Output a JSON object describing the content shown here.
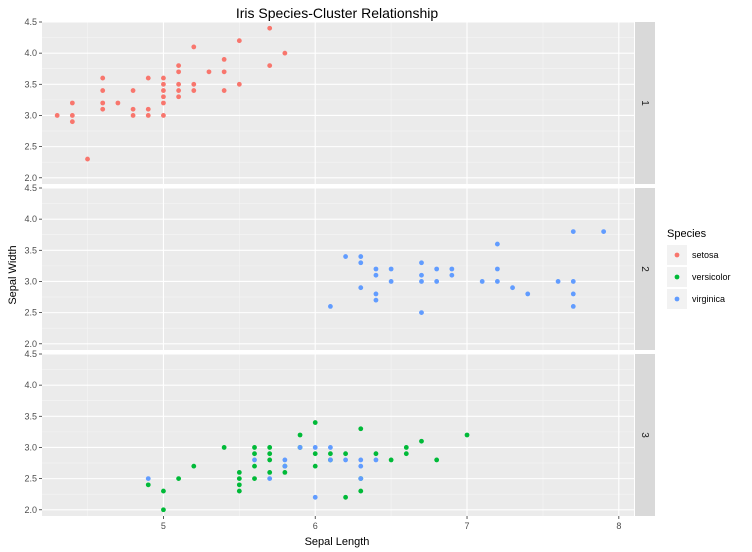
{
  "chart_data": {
    "type": "scatter",
    "title": "Iris Species-Cluster Relationship",
    "xlabel": "Sepal Length",
    "ylabel": "Sepal Width",
    "xlim": [
      4.2,
      8.1
    ],
    "ylim": [
      1.9,
      4.5
    ],
    "x_ticks": [
      5,
      6,
      7,
      8
    ],
    "y_ticks": [
      2.0,
      2.5,
      3.0,
      3.5,
      4.0,
      4.5
    ],
    "y_tick_labels": [
      "2.0",
      "2.5",
      "3.0",
      "3.5",
      "4.0",
      "4.5"
    ],
    "grid": true,
    "facet_by": "cluster",
    "facets": [
      "1",
      "2",
      "3"
    ],
    "legend": {
      "title": "Species",
      "position": "right",
      "entries": [
        "setosa",
        "versicolor",
        "virginica"
      ]
    },
    "colors": {
      "setosa": "#F8766D",
      "versicolor": "#00BA38",
      "virginica": "#619CFF",
      "panel_bg": "#EBEBEB",
      "strip_bg": "#D9D9D9"
    },
    "series": [
      {
        "name": "setosa",
        "points": [
          {
            "facet": "1",
            "x": 4.3,
            "y": 3.0
          },
          {
            "facet": "1",
            "x": 4.4,
            "y": 3.2
          },
          {
            "facet": "1",
            "x": 4.4,
            "y": 3.0
          },
          {
            "facet": "1",
            "x": 4.4,
            "y": 2.9
          },
          {
            "facet": "1",
            "x": 4.5,
            "y": 2.3
          },
          {
            "facet": "1",
            "x": 4.6,
            "y": 3.6
          },
          {
            "facet": "1",
            "x": 4.6,
            "y": 3.4
          },
          {
            "facet": "1",
            "x": 4.6,
            "y": 3.2
          },
          {
            "facet": "1",
            "x": 4.6,
            "y": 3.1
          },
          {
            "facet": "1",
            "x": 4.7,
            "y": 3.2
          },
          {
            "facet": "1",
            "x": 4.8,
            "y": 3.4
          },
          {
            "facet": "1",
            "x": 4.8,
            "y": 3.1
          },
          {
            "facet": "1",
            "x": 4.8,
            "y": 3.0
          },
          {
            "facet": "1",
            "x": 4.9,
            "y": 3.6
          },
          {
            "facet": "1",
            "x": 4.9,
            "y": 3.1
          },
          {
            "facet": "1",
            "x": 4.9,
            "y": 3.0
          },
          {
            "facet": "1",
            "x": 5.0,
            "y": 3.6
          },
          {
            "facet": "1",
            "x": 5.0,
            "y": 3.5
          },
          {
            "facet": "1",
            "x": 5.0,
            "y": 3.4
          },
          {
            "facet": "1",
            "x": 5.0,
            "y": 3.3
          },
          {
            "facet": "1",
            "x": 5.0,
            "y": 3.2
          },
          {
            "facet": "1",
            "x": 5.0,
            "y": 3.0
          },
          {
            "facet": "1",
            "x": 5.1,
            "y": 3.8
          },
          {
            "facet": "1",
            "x": 5.1,
            "y": 3.7
          },
          {
            "facet": "1",
            "x": 5.1,
            "y": 3.5
          },
          {
            "facet": "1",
            "x": 5.1,
            "y": 3.4
          },
          {
            "facet": "1",
            "x": 5.1,
            "y": 3.3
          },
          {
            "facet": "1",
            "x": 5.2,
            "y": 4.1
          },
          {
            "facet": "1",
            "x": 5.2,
            "y": 3.5
          },
          {
            "facet": "1",
            "x": 5.2,
            "y": 3.4
          },
          {
            "facet": "1",
            "x": 5.3,
            "y": 3.7
          },
          {
            "facet": "1",
            "x": 5.4,
            "y": 3.9
          },
          {
            "facet": "1",
            "x": 5.4,
            "y": 3.7
          },
          {
            "facet": "1",
            "x": 5.4,
            "y": 3.4
          },
          {
            "facet": "1",
            "x": 5.5,
            "y": 4.2
          },
          {
            "facet": "1",
            "x": 5.5,
            "y": 3.5
          },
          {
            "facet": "1",
            "x": 5.7,
            "y": 4.4
          },
          {
            "facet": "1",
            "x": 5.7,
            "y": 3.8
          },
          {
            "facet": "1",
            "x": 5.8,
            "y": 4.0
          }
        ]
      },
      {
        "name": "versicolor",
        "points": [
          {
            "facet": "3",
            "x": 4.9,
            "y": 2.4
          },
          {
            "facet": "3",
            "x": 5.0,
            "y": 2.3
          },
          {
            "facet": "3",
            "x": 5.0,
            "y": 2.0
          },
          {
            "facet": "3",
            "x": 5.1,
            "y": 2.5
          },
          {
            "facet": "3",
            "x": 5.2,
            "y": 2.7
          },
          {
            "facet": "3",
            "x": 5.4,
            "y": 3.0
          },
          {
            "facet": "3",
            "x": 5.5,
            "y": 2.6
          },
          {
            "facet": "3",
            "x": 5.5,
            "y": 2.5
          },
          {
            "facet": "3",
            "x": 5.5,
            "y": 2.4
          },
          {
            "facet": "3",
            "x": 5.5,
            "y": 2.3
          },
          {
            "facet": "3",
            "x": 5.6,
            "y": 3.0
          },
          {
            "facet": "3",
            "x": 5.6,
            "y": 2.9
          },
          {
            "facet": "3",
            "x": 5.6,
            "y": 2.7
          },
          {
            "facet": "3",
            "x": 5.6,
            "y": 2.5
          },
          {
            "facet": "3",
            "x": 5.7,
            "y": 3.0
          },
          {
            "facet": "3",
            "x": 5.7,
            "y": 2.9
          },
          {
            "facet": "3",
            "x": 5.7,
            "y": 2.8
          },
          {
            "facet": "3",
            "x": 5.7,
            "y": 2.6
          },
          {
            "facet": "3",
            "x": 5.8,
            "y": 2.7
          },
          {
            "facet": "3",
            "x": 5.8,
            "y": 2.6
          },
          {
            "facet": "3",
            "x": 5.9,
            "y": 3.2
          },
          {
            "facet": "3",
            "x": 5.9,
            "y": 3.0
          },
          {
            "facet": "3",
            "x": 6.0,
            "y": 3.4
          },
          {
            "facet": "3",
            "x": 6.0,
            "y": 2.9
          },
          {
            "facet": "3",
            "x": 6.0,
            "y": 2.7
          },
          {
            "facet": "3",
            "x": 6.1,
            "y": 2.9
          },
          {
            "facet": "3",
            "x": 6.1,
            "y": 2.8
          },
          {
            "facet": "3",
            "x": 6.2,
            "y": 2.9
          },
          {
            "facet": "3",
            "x": 6.2,
            "y": 2.2
          },
          {
            "facet": "3",
            "x": 6.3,
            "y": 3.3
          },
          {
            "facet": "3",
            "x": 6.3,
            "y": 2.5
          },
          {
            "facet": "3",
            "x": 6.3,
            "y": 2.3
          },
          {
            "facet": "3",
            "x": 6.4,
            "y": 2.9
          },
          {
            "facet": "3",
            "x": 6.5,
            "y": 2.8
          },
          {
            "facet": "3",
            "x": 6.6,
            "y": 3.0
          },
          {
            "facet": "3",
            "x": 6.6,
            "y": 2.9
          },
          {
            "facet": "3",
            "x": 6.7,
            "y": 3.1
          },
          {
            "facet": "3",
            "x": 6.8,
            "y": 2.8
          },
          {
            "facet": "3",
            "x": 7.0,
            "y": 3.2
          }
        ]
      },
      {
        "name": "virginica",
        "points": [
          {
            "facet": "2",
            "x": 6.1,
            "y": 2.6
          },
          {
            "facet": "2",
            "x": 6.2,
            "y": 3.4
          },
          {
            "facet": "2",
            "x": 6.3,
            "y": 3.4
          },
          {
            "facet": "2",
            "x": 6.3,
            "y": 3.3
          },
          {
            "facet": "2",
            "x": 6.3,
            "y": 2.9
          },
          {
            "facet": "2",
            "x": 6.4,
            "y": 3.2
          },
          {
            "facet": "2",
            "x": 6.4,
            "y": 3.1
          },
          {
            "facet": "2",
            "x": 6.4,
            "y": 2.8
          },
          {
            "facet": "2",
            "x": 6.4,
            "y": 2.7
          },
          {
            "facet": "2",
            "x": 6.5,
            "y": 3.2
          },
          {
            "facet": "2",
            "x": 6.5,
            "y": 3.0
          },
          {
            "facet": "2",
            "x": 6.7,
            "y": 3.3
          },
          {
            "facet": "2",
            "x": 6.7,
            "y": 3.1
          },
          {
            "facet": "2",
            "x": 6.7,
            "y": 3.0
          },
          {
            "facet": "2",
            "x": 6.7,
            "y": 2.5
          },
          {
            "facet": "2",
            "x": 6.8,
            "y": 3.2
          },
          {
            "facet": "2",
            "x": 6.8,
            "y": 3.0
          },
          {
            "facet": "2",
            "x": 6.9,
            "y": 3.2
          },
          {
            "facet": "2",
            "x": 6.9,
            "y": 3.1
          },
          {
            "facet": "2",
            "x": 7.1,
            "y": 3.0
          },
          {
            "facet": "2",
            "x": 7.2,
            "y": 3.6
          },
          {
            "facet": "2",
            "x": 7.2,
            "y": 3.2
          },
          {
            "facet": "2",
            "x": 7.2,
            "y": 3.0
          },
          {
            "facet": "2",
            "x": 7.3,
            "y": 2.9
          },
          {
            "facet": "2",
            "x": 7.4,
            "y": 2.8
          },
          {
            "facet": "2",
            "x": 7.6,
            "y": 3.0
          },
          {
            "facet": "2",
            "x": 7.7,
            "y": 3.8
          },
          {
            "facet": "2",
            "x": 7.7,
            "y": 3.0
          },
          {
            "facet": "2",
            "x": 7.7,
            "y": 2.8
          },
          {
            "facet": "2",
            "x": 7.7,
            "y": 2.6
          },
          {
            "facet": "2",
            "x": 7.9,
            "y": 3.8
          },
          {
            "facet": "3",
            "x": 4.9,
            "y": 2.5
          },
          {
            "facet": "3",
            "x": 5.6,
            "y": 2.8
          },
          {
            "facet": "3",
            "x": 5.7,
            "y": 2.5
          },
          {
            "facet": "3",
            "x": 5.8,
            "y": 2.8
          },
          {
            "facet": "3",
            "x": 5.8,
            "y": 2.7
          },
          {
            "facet": "3",
            "x": 5.9,
            "y": 3.0
          },
          {
            "facet": "3",
            "x": 6.0,
            "y": 3.0
          },
          {
            "facet": "3",
            "x": 6.0,
            "y": 2.2
          },
          {
            "facet": "3",
            "x": 6.1,
            "y": 3.0
          },
          {
            "facet": "3",
            "x": 6.1,
            "y": 2.8
          },
          {
            "facet": "3",
            "x": 6.2,
            "y": 2.8
          },
          {
            "facet": "3",
            "x": 6.3,
            "y": 2.8
          },
          {
            "facet": "3",
            "x": 6.3,
            "y": 2.7
          },
          {
            "facet": "3",
            "x": 6.3,
            "y": 2.5
          },
          {
            "facet": "3",
            "x": 6.4,
            "y": 2.8
          }
        ]
      }
    ]
  }
}
